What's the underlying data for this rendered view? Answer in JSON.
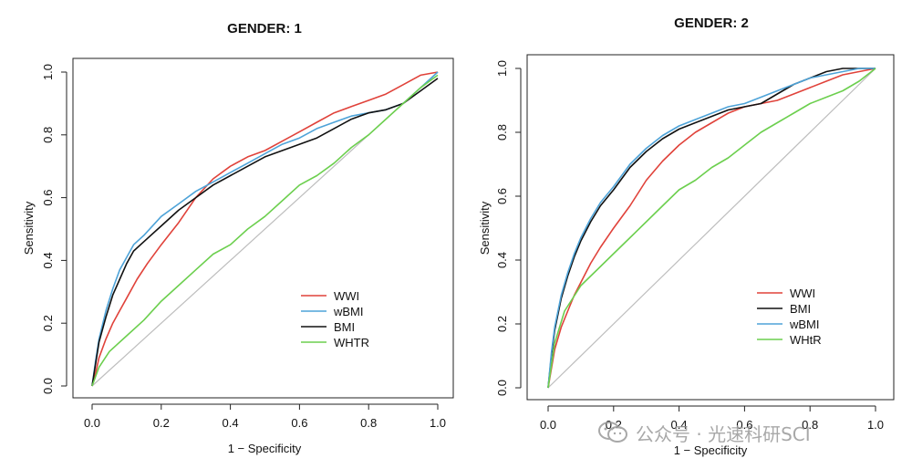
{
  "chart_data": [
    {
      "type": "line",
      "title": "GENDER:   1",
      "xlabel": "1 − Specificity",
      "ylabel": "Sensitivity",
      "xlim": [
        0,
        1
      ],
      "ylim": [
        0,
        1
      ],
      "xticks": [
        "0.0",
        "0.2",
        "0.4",
        "0.6",
        "0.8",
        "1.0"
      ],
      "yticks": [
        "0.0",
        "0.2",
        "0.4",
        "0.6",
        "0.8",
        "1.0"
      ],
      "legend_position": "bottom-right",
      "reference_line": {
        "x": [
          0,
          1
        ],
        "y": [
          0,
          1
        ],
        "color": "#bdbdbd"
      },
      "series": [
        {
          "name": "WWI",
          "color": "#e0423a",
          "x": [
            0,
            0.01,
            0.02,
            0.04,
            0.06,
            0.08,
            0.1,
            0.13,
            0.16,
            0.2,
            0.25,
            0.3,
            0.35,
            0.4,
            0.45,
            0.5,
            0.55,
            0.6,
            0.65,
            0.7,
            0.75,
            0.8,
            0.85,
            0.9,
            0.95,
            1.0
          ],
          "y": [
            0,
            0.04,
            0.09,
            0.15,
            0.2,
            0.24,
            0.28,
            0.34,
            0.39,
            0.45,
            0.52,
            0.6,
            0.66,
            0.7,
            0.73,
            0.75,
            0.78,
            0.81,
            0.84,
            0.87,
            0.89,
            0.91,
            0.93,
            0.96,
            0.99,
            1.0
          ]
        },
        {
          "name": "wBMI",
          "color": "#4ea3d8",
          "x": [
            0,
            0.01,
            0.02,
            0.04,
            0.06,
            0.08,
            0.1,
            0.12,
            0.15,
            0.2,
            0.25,
            0.3,
            0.35,
            0.4,
            0.45,
            0.5,
            0.55,
            0.6,
            0.65,
            0.7,
            0.75,
            0.8,
            0.85,
            0.9,
            0.95,
            1.0
          ],
          "y": [
            0,
            0.08,
            0.15,
            0.24,
            0.31,
            0.37,
            0.41,
            0.45,
            0.48,
            0.54,
            0.58,
            0.62,
            0.65,
            0.68,
            0.71,
            0.74,
            0.77,
            0.79,
            0.82,
            0.84,
            0.86,
            0.87,
            0.88,
            0.9,
            0.95,
            1.0
          ]
        },
        {
          "name": "BMI",
          "color": "#111111",
          "x": [
            0,
            0.01,
            0.02,
            0.04,
            0.06,
            0.08,
            0.1,
            0.12,
            0.15,
            0.2,
            0.25,
            0.3,
            0.35,
            0.4,
            0.45,
            0.5,
            0.55,
            0.6,
            0.65,
            0.7,
            0.75,
            0.8,
            0.85,
            0.9,
            0.95,
            1.0
          ],
          "y": [
            0,
            0.07,
            0.14,
            0.22,
            0.29,
            0.34,
            0.39,
            0.43,
            0.46,
            0.51,
            0.56,
            0.6,
            0.64,
            0.67,
            0.7,
            0.73,
            0.75,
            0.77,
            0.79,
            0.82,
            0.85,
            0.87,
            0.88,
            0.9,
            0.94,
            0.98
          ]
        },
        {
          "name": "WHTR",
          "color": "#6ccf4e",
          "x": [
            0,
            0.02,
            0.05,
            0.1,
            0.15,
            0.2,
            0.25,
            0.3,
            0.35,
            0.4,
            0.45,
            0.5,
            0.55,
            0.6,
            0.65,
            0.7,
            0.75,
            0.8,
            0.85,
            0.9,
            0.95,
            1.0
          ],
          "y": [
            0,
            0.06,
            0.11,
            0.16,
            0.21,
            0.27,
            0.32,
            0.37,
            0.42,
            0.45,
            0.5,
            0.54,
            0.59,
            0.64,
            0.67,
            0.71,
            0.76,
            0.8,
            0.85,
            0.9,
            0.95,
            0.99
          ]
        }
      ]
    },
    {
      "type": "line",
      "title": "GENDER:   2",
      "xlabel": "1 − Specificity",
      "ylabel": "Sensitivity",
      "xlim": [
        0,
        1
      ],
      "ylim": [
        0,
        1
      ],
      "xticks": [
        "0.0",
        "0.2",
        "0.4",
        "0.6",
        "0.8",
        "1.0"
      ],
      "yticks": [
        "0.0",
        "0.2",
        "0.4",
        "0.6",
        "0.8",
        "1.0"
      ],
      "legend_position": "bottom-right",
      "reference_line": {
        "x": [
          0,
          1
        ],
        "y": [
          0,
          1
        ],
        "color": "#bdbdbd"
      },
      "series": [
        {
          "name": "WWI",
          "color": "#e0423a",
          "x": [
            0,
            0.01,
            0.02,
            0.04,
            0.06,
            0.08,
            0.1,
            0.13,
            0.16,
            0.2,
            0.25,
            0.3,
            0.35,
            0.4,
            0.45,
            0.5,
            0.55,
            0.6,
            0.65,
            0.7,
            0.75,
            0.8,
            0.85,
            0.9,
            0.95,
            1.0
          ],
          "y": [
            0,
            0.06,
            0.12,
            0.19,
            0.24,
            0.29,
            0.33,
            0.39,
            0.44,
            0.5,
            0.57,
            0.65,
            0.71,
            0.76,
            0.8,
            0.83,
            0.86,
            0.88,
            0.89,
            0.9,
            0.92,
            0.94,
            0.96,
            0.98,
            0.99,
            1.0
          ]
        },
        {
          "name": "BMI",
          "color": "#111111",
          "x": [
            0,
            0.01,
            0.02,
            0.04,
            0.06,
            0.08,
            0.1,
            0.13,
            0.16,
            0.2,
            0.25,
            0.3,
            0.35,
            0.4,
            0.45,
            0.5,
            0.55,
            0.6,
            0.65,
            0.7,
            0.75,
            0.8,
            0.85,
            0.9,
            0.95,
            1.0
          ],
          "y": [
            0,
            0.1,
            0.18,
            0.28,
            0.35,
            0.41,
            0.46,
            0.52,
            0.57,
            0.62,
            0.69,
            0.74,
            0.78,
            0.81,
            0.83,
            0.85,
            0.87,
            0.88,
            0.89,
            0.92,
            0.95,
            0.97,
            0.99,
            1.0,
            1.0,
            1.0
          ]
        },
        {
          "name": "wBMI",
          "color": "#4ea3d8",
          "x": [
            0,
            0.01,
            0.02,
            0.04,
            0.06,
            0.08,
            0.1,
            0.13,
            0.16,
            0.2,
            0.25,
            0.3,
            0.35,
            0.4,
            0.45,
            0.5,
            0.55,
            0.6,
            0.65,
            0.7,
            0.75,
            0.8,
            0.85,
            0.9,
            0.95,
            1.0
          ],
          "y": [
            0,
            0.11,
            0.19,
            0.29,
            0.36,
            0.42,
            0.47,
            0.53,
            0.58,
            0.63,
            0.7,
            0.75,
            0.79,
            0.82,
            0.84,
            0.86,
            0.88,
            0.89,
            0.91,
            0.93,
            0.95,
            0.97,
            0.98,
            0.99,
            1.0,
            1.0
          ]
        },
        {
          "name": "WHtR",
          "color": "#6ccf4e",
          "x": [
            0,
            0.02,
            0.05,
            0.1,
            0.15,
            0.2,
            0.25,
            0.3,
            0.35,
            0.4,
            0.45,
            0.5,
            0.55,
            0.6,
            0.65,
            0.7,
            0.75,
            0.8,
            0.85,
            0.9,
            0.95,
            1.0
          ],
          "y": [
            0,
            0.14,
            0.24,
            0.32,
            0.37,
            0.42,
            0.47,
            0.52,
            0.57,
            0.62,
            0.65,
            0.69,
            0.72,
            0.76,
            0.8,
            0.83,
            0.86,
            0.89,
            0.91,
            0.93,
            0.96,
            1.0
          ]
        }
      ]
    }
  ],
  "watermark": {
    "text": "公众号 · 光速科研SCI",
    "icon": "wechat-bubble-icon",
    "color": "#9a9a9a"
  }
}
